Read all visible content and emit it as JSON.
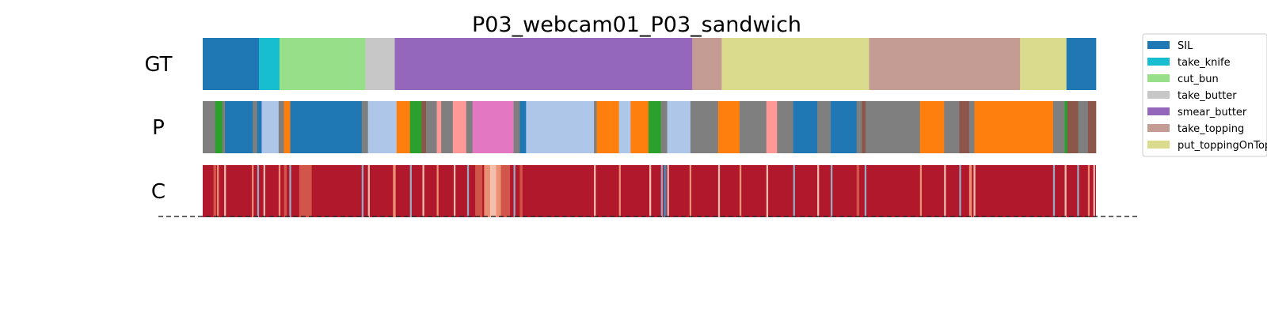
{
  "chart_data": {
    "type": "segmentation",
    "title": "P03_webcam01_P03_sandwich",
    "x_range": [
      0,
      1000
    ],
    "rows": [
      {
        "label": "GT",
        "segments": [
          {
            "start": 0,
            "end": 63,
            "color": "#1f77b4"
          },
          {
            "start": 63,
            "end": 86,
            "color": "#17becf"
          },
          {
            "start": 86,
            "end": 182,
            "color": "#98df8a"
          },
          {
            "start": 182,
            "end": 215,
            "color": "#c7c7c7"
          },
          {
            "start": 215,
            "end": 548,
            "color": "#9467bd"
          },
          {
            "start": 548,
            "end": 581,
            "color": "#c49c94"
          },
          {
            "start": 581,
            "end": 746,
            "color": "#dbdb8d"
          },
          {
            "start": 746,
            "end": 915,
            "color": "#c49c94"
          },
          {
            "start": 915,
            "end": 967,
            "color": "#dbdb8d"
          },
          {
            "start": 967,
            "end": 1000,
            "color": "#1f77b4"
          }
        ]
      },
      {
        "label": "P",
        "segments": [
          {
            "start": 0,
            "end": 14,
            "color": "#7f7f7f"
          },
          {
            "start": 14,
            "end": 22,
            "color": "#2ca02c"
          },
          {
            "start": 22,
            "end": 25,
            "color": "#7f7f7f"
          },
          {
            "start": 25,
            "end": 56,
            "color": "#1f77b4"
          },
          {
            "start": 56,
            "end": 61,
            "color": "#7f7f7f"
          },
          {
            "start": 61,
            "end": 66,
            "color": "#1f77b4"
          },
          {
            "start": 66,
            "end": 85,
            "color": "#aec7e8"
          },
          {
            "start": 85,
            "end": 91,
            "color": "#7f7f7f"
          },
          {
            "start": 91,
            "end": 98,
            "color": "#ff7f0e"
          },
          {
            "start": 98,
            "end": 178,
            "color": "#1f77b4"
          },
          {
            "start": 178,
            "end": 185,
            "color": "#7f7f7f"
          },
          {
            "start": 185,
            "end": 217,
            "color": "#aec7e8"
          },
          {
            "start": 217,
            "end": 232,
            "color": "#ff7f0e"
          },
          {
            "start": 232,
            "end": 245,
            "color": "#2ca02c"
          },
          {
            "start": 245,
            "end": 250,
            "color": "#8c564b"
          },
          {
            "start": 250,
            "end": 262,
            "color": "#7f7f7f"
          },
          {
            "start": 262,
            "end": 267,
            "color": "#ff9896"
          },
          {
            "start": 267,
            "end": 280,
            "color": "#7f7f7f"
          },
          {
            "start": 280,
            "end": 295,
            "color": "#ff9896"
          },
          {
            "start": 295,
            "end": 302,
            "color": "#7f7f7f"
          },
          {
            "start": 302,
            "end": 348,
            "color": "#e377c2"
          },
          {
            "start": 348,
            "end": 355,
            "color": "#7f7f7f"
          },
          {
            "start": 355,
            "end": 362,
            "color": "#1f77b4"
          },
          {
            "start": 362,
            "end": 438,
            "color": "#aec7e8"
          },
          {
            "start": 438,
            "end": 441,
            "color": "#7f7f7f"
          },
          {
            "start": 441,
            "end": 466,
            "color": "#ff7f0e"
          },
          {
            "start": 466,
            "end": 479,
            "color": "#aec7e8"
          },
          {
            "start": 479,
            "end": 499,
            "color": "#ff7f0e"
          },
          {
            "start": 499,
            "end": 513,
            "color": "#2ca02c"
          },
          {
            "start": 513,
            "end": 520,
            "color": "#7f7f7f"
          },
          {
            "start": 520,
            "end": 525,
            "color": "#aec7e8"
          },
          {
            "start": 525,
            "end": 523,
            "color": "#aec7e8"
          },
          {
            "start": 523,
            "end": 546,
            "color": "#aec7e8"
          },
          {
            "start": 546,
            "end": 577,
            "color": "#7f7f7f"
          },
          {
            "start": 577,
            "end": 601,
            "color": "#ff7f0e"
          },
          {
            "start": 601,
            "end": 631,
            "color": "#7f7f7f"
          },
          {
            "start": 631,
            "end": 643,
            "color": "#ff9896"
          },
          {
            "start": 643,
            "end": 661,
            "color": "#7f7f7f"
          },
          {
            "start": 661,
            "end": 688,
            "color": "#1f77b4"
          },
          {
            "start": 688,
            "end": 703,
            "color": "#7f7f7f"
          },
          {
            "start": 703,
            "end": 732,
            "color": "#1f77b4"
          },
          {
            "start": 732,
            "end": 738,
            "color": "#7f7f7f"
          },
          {
            "start": 738,
            "end": 742,
            "color": "#8c564b"
          },
          {
            "start": 742,
            "end": 803,
            "color": "#7f7f7f"
          },
          {
            "start": 803,
            "end": 830,
            "color": "#ff7f0e"
          },
          {
            "start": 830,
            "end": 847,
            "color": "#7f7f7f"
          },
          {
            "start": 847,
            "end": 858,
            "color": "#8c564b"
          },
          {
            "start": 858,
            "end": 864,
            "color": "#7f7f7f"
          },
          {
            "start": 864,
            "end": 952,
            "color": "#ff7f0e"
          },
          {
            "start": 952,
            "end": 965,
            "color": "#7f7f7f"
          },
          {
            "start": 965,
            "end": 968,
            "color": "#2ca02c"
          },
          {
            "start": 968,
            "end": 980,
            "color": "#8c564b"
          },
          {
            "start": 980,
            "end": 991,
            "color": "#7f7f7f"
          },
          {
            "start": 991,
            "end": 1000,
            "color": "#8c564b"
          }
        ]
      },
      {
        "label": "C",
        "base_color": "#b2182b",
        "stripes": [
          {
            "x": 12,
            "w": 3,
            "color": "#d6604d"
          },
          {
            "x": 16,
            "w": 2,
            "color": "#f4a582"
          },
          {
            "x": 24,
            "w": 2,
            "color": "#fddbc7"
          },
          {
            "x": 55,
            "w": 2,
            "color": "#f4a582"
          },
          {
            "x": 61,
            "w": 2,
            "color": "#92c5de"
          },
          {
            "x": 68,
            "w": 2,
            "color": "#fddbc7"
          },
          {
            "x": 85,
            "w": 2,
            "color": "#f4a582"
          },
          {
            "x": 91,
            "w": 3,
            "color": "#d6604d"
          },
          {
            "x": 97,
            "w": 2,
            "color": "#92c5de"
          },
          {
            "x": 108,
            "w": 14,
            "color": "#d6604d"
          },
          {
            "x": 178,
            "w": 2,
            "color": "#92c5de"
          },
          {
            "x": 185,
            "w": 2,
            "color": "#fddbc7"
          },
          {
            "x": 213,
            "w": 3,
            "color": "#f4a582"
          },
          {
            "x": 232,
            "w": 2,
            "color": "#92c5de"
          },
          {
            "x": 246,
            "w": 2,
            "color": "#fddbc7"
          },
          {
            "x": 262,
            "w": 2,
            "color": "#f4a582"
          },
          {
            "x": 281,
            "w": 2,
            "color": "#fddbc7"
          },
          {
            "x": 296,
            "w": 2,
            "color": "#92c5de"
          },
          {
            "x": 305,
            "w": 8,
            "color": "#d6604d"
          },
          {
            "x": 315,
            "w": 8,
            "color": "#f4a582"
          },
          {
            "x": 322,
            "w": 7,
            "color": "#fddbc7"
          },
          {
            "x": 328,
            "w": 6,
            "color": "#f4a582"
          },
          {
            "x": 334,
            "w": 10,
            "color": "#d6604d"
          },
          {
            "x": 348,
            "w": 2,
            "color": "#92c5de"
          },
          {
            "x": 355,
            "w": 3,
            "color": "#d6604d"
          },
          {
            "x": 438,
            "w": 2,
            "color": "#fddbc7"
          },
          {
            "x": 466,
            "w": 2,
            "color": "#f4a582"
          },
          {
            "x": 500,
            "w": 2,
            "color": "#fddbc7"
          },
          {
            "x": 513,
            "w": 2,
            "color": "#92c5de"
          },
          {
            "x": 516,
            "w": 3,
            "color": "#4393c3"
          },
          {
            "x": 520,
            "w": 2,
            "color": "#fddbc7"
          },
          {
            "x": 545,
            "w": 2,
            "color": "#f4a582"
          },
          {
            "x": 577,
            "w": 2,
            "color": "#fddbc7"
          },
          {
            "x": 601,
            "w": 2,
            "color": "#f4a582"
          },
          {
            "x": 631,
            "w": 2,
            "color": "#fddbc7"
          },
          {
            "x": 661,
            "w": 2,
            "color": "#92c5de"
          },
          {
            "x": 688,
            "w": 2,
            "color": "#fddbc7"
          },
          {
            "x": 703,
            "w": 2,
            "color": "#92c5de"
          },
          {
            "x": 732,
            "w": 3,
            "color": "#d6604d"
          },
          {
            "x": 741,
            "w": 2,
            "color": "#92c5de"
          },
          {
            "x": 803,
            "w": 2,
            "color": "#f4a582"
          },
          {
            "x": 830,
            "w": 2,
            "color": "#fddbc7"
          },
          {
            "x": 847,
            "w": 2,
            "color": "#92c5de"
          },
          {
            "x": 858,
            "w": 3,
            "color": "#f4a582"
          },
          {
            "x": 863,
            "w": 2,
            "color": "#fddbc7"
          },
          {
            "x": 952,
            "w": 2,
            "color": "#92c5de"
          },
          {
            "x": 965,
            "w": 2,
            "color": "#fddbc7"
          },
          {
            "x": 979,
            "w": 2,
            "color": "#92c5de"
          },
          {
            "x": 991,
            "w": 2,
            "color": "#f4a582"
          },
          {
            "x": 997,
            "w": 2,
            "color": "#fddbc7"
          }
        ]
      }
    ],
    "legend": {
      "placement": "right",
      "entries": [
        {
          "name": "SIL",
          "color": "#1f77b4"
        },
        {
          "name": "take_knife",
          "color": "#17becf"
        },
        {
          "name": "cut_bun",
          "color": "#98df8a"
        },
        {
          "name": "take_butter",
          "color": "#c7c7c7"
        },
        {
          "name": "smear_butter",
          "color": "#9467bd"
        },
        {
          "name": "take_topping",
          "color": "#c49c94"
        },
        {
          "name": "put_toppingOnTop",
          "color": "#dbdb8d"
        }
      ]
    },
    "baseline_dashed": true
  }
}
